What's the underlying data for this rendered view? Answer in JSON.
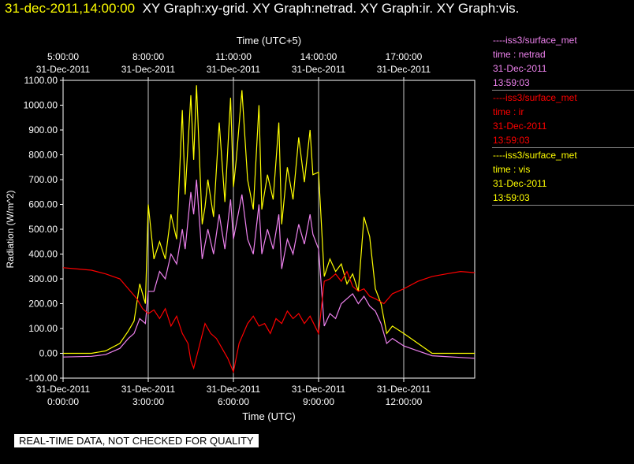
{
  "header": {
    "timestamp": "31-dec-2011,14:00:00",
    "graphs": "XY Graph:xy-grid.  XY Graph:netrad.  XY Graph:ir.  XY Graph:vis."
  },
  "legend": [
    {
      "title": "----iss3/surface_met",
      "var": "time : netrad",
      "date": "31-Dec-2011",
      "time": "13:59:03",
      "color": "#ee82ee"
    },
    {
      "title": "----iss3/surface_met",
      "var": "time : ir",
      "date": "31-Dec-2011",
      "time": "13:59:03",
      "color": "#ff0000"
    },
    {
      "title": "----iss3/surface_met",
      "var": "time : vis",
      "date": "31-Dec-2011",
      "time": "13:59:03",
      "color": "#ffff00"
    }
  ],
  "disclaimer": "REAL-TIME DATA, NOT CHECKED FOR QUALITY",
  "chart_data": {
    "type": "line",
    "xlabel": "Time (UTC)",
    "x2label": "Time (UTC+5)",
    "ylabel": "Radiation (W/m^2)",
    "xlim": [
      0,
      14.5
    ],
    "ylim": [
      -100,
      1100
    ],
    "grid": true,
    "x_ticks": [
      {
        "x": 0,
        "date": "31-Dec-2011",
        "time": "0:00:00"
      },
      {
        "x": 3,
        "date": "31-Dec-2011",
        "time": "3:00:00"
      },
      {
        "x": 6,
        "date": "31-Dec-2011",
        "time": "6:00:00"
      },
      {
        "x": 9,
        "date": "31-Dec-2011",
        "time": "9:00:00"
      },
      {
        "x": 12,
        "date": "31-Dec-2011",
        "time": "12:00:00"
      }
    ],
    "x2_ticks": [
      {
        "x": 0,
        "time": "5:00:00",
        "date": "31-Dec-2011"
      },
      {
        "x": 3,
        "time": "8:00:00",
        "date": "31-Dec-2011"
      },
      {
        "x": 6,
        "time": "11:00:00",
        "date": "31-Dec-2011"
      },
      {
        "x": 9,
        "time": "14:00:00",
        "date": "31-Dec-2011"
      },
      {
        "x": 12,
        "time": "17:00:00",
        "date": "31-Dec-2011"
      }
    ],
    "y_ticks": [
      "1100.00",
      "1000.00",
      "900.00",
      "800.00",
      "700.00",
      "600.00",
      "500.00",
      "400.00",
      "300.00",
      "200.00",
      "100.00",
      "0.00",
      "-100.00"
    ],
    "series": [
      {
        "name": "time : vis",
        "color": "#ffff00",
        "points": [
          [
            0,
            0
          ],
          [
            1,
            0
          ],
          [
            1.5,
            10
          ],
          [
            2,
            40
          ],
          [
            2.3,
            90
          ],
          [
            2.5,
            130
          ],
          [
            2.7,
            280
          ],
          [
            2.9,
            200
          ],
          [
            3,
            600
          ],
          [
            3.2,
            380
          ],
          [
            3.4,
            450
          ],
          [
            3.6,
            380
          ],
          [
            3.8,
            560
          ],
          [
            4,
            460
          ],
          [
            4.2,
            980
          ],
          [
            4.3,
            640
          ],
          [
            4.5,
            1040
          ],
          [
            4.6,
            780
          ],
          [
            4.7,
            1080
          ],
          [
            4.9,
            520
          ],
          [
            5,
            590
          ],
          [
            5.1,
            700
          ],
          [
            5.3,
            550
          ],
          [
            5.5,
            930
          ],
          [
            5.7,
            610
          ],
          [
            5.9,
            1030
          ],
          [
            6,
            670
          ],
          [
            6.1,
            780
          ],
          [
            6.3,
            1060
          ],
          [
            6.5,
            700
          ],
          [
            6.7,
            580
          ],
          [
            6.9,
            1000
          ],
          [
            7,
            580
          ],
          [
            7.2,
            720
          ],
          [
            7.4,
            620
          ],
          [
            7.6,
            930
          ],
          [
            7.7,
            520
          ],
          [
            7.9,
            750
          ],
          [
            8.1,
            620
          ],
          [
            8.3,
            870
          ],
          [
            8.5,
            690
          ],
          [
            8.7,
            900
          ],
          [
            8.8,
            720
          ],
          [
            9,
            730
          ],
          [
            9.2,
            310
          ],
          [
            9.4,
            380
          ],
          [
            9.6,
            330
          ],
          [
            9.8,
            360
          ],
          [
            10,
            280
          ],
          [
            10.2,
            320
          ],
          [
            10.4,
            250
          ],
          [
            10.6,
            550
          ],
          [
            10.8,
            470
          ],
          [
            11,
            260
          ],
          [
            11.2,
            200
          ],
          [
            11.4,
            80
          ],
          [
            11.6,
            110
          ],
          [
            12,
            80
          ],
          [
            12.5,
            40
          ],
          [
            13,
            0
          ],
          [
            14.5,
            0
          ]
        ]
      },
      {
        "name": "time : netrad",
        "color": "#ee82ee",
        "points": [
          [
            0,
            -15
          ],
          [
            1,
            -12
          ],
          [
            1.5,
            -5
          ],
          [
            2,
            20
          ],
          [
            2.3,
            60
          ],
          [
            2.5,
            80
          ],
          [
            2.7,
            140
          ],
          [
            2.9,
            120
          ],
          [
            3,
            250
          ],
          [
            3.2,
            250
          ],
          [
            3.4,
            330
          ],
          [
            3.6,
            300
          ],
          [
            3.8,
            400
          ],
          [
            4,
            360
          ],
          [
            4.2,
            500
          ],
          [
            4.3,
            420
          ],
          [
            4.5,
            650
          ],
          [
            4.6,
            560
          ],
          [
            4.7,
            700
          ],
          [
            4.9,
            380
          ],
          [
            5,
            440
          ],
          [
            5.1,
            500
          ],
          [
            5.3,
            400
          ],
          [
            5.5,
            560
          ],
          [
            5.7,
            420
          ],
          [
            5.9,
            620
          ],
          [
            6,
            460
          ],
          [
            6.1,
            520
          ],
          [
            6.3,
            640
          ],
          [
            6.5,
            460
          ],
          [
            6.7,
            400
          ],
          [
            6.9,
            600
          ],
          [
            7,
            400
          ],
          [
            7.2,
            500
          ],
          [
            7.4,
            420
          ],
          [
            7.6,
            560
          ],
          [
            7.7,
            340
          ],
          [
            7.9,
            460
          ],
          [
            8.1,
            400
          ],
          [
            8.3,
            520
          ],
          [
            8.5,
            440
          ],
          [
            8.7,
            560
          ],
          [
            8.8,
            480
          ],
          [
            9,
            420
          ],
          [
            9.2,
            110
          ],
          [
            9.4,
            160
          ],
          [
            9.6,
            140
          ],
          [
            9.8,
            200
          ],
          [
            10,
            220
          ],
          [
            10.2,
            240
          ],
          [
            10.4,
            200
          ],
          [
            10.6,
            230
          ],
          [
            10.8,
            190
          ],
          [
            11,
            170
          ],
          [
            11.2,
            120
          ],
          [
            11.4,
            40
          ],
          [
            11.6,
            60
          ],
          [
            12,
            30
          ],
          [
            12.5,
            10
          ],
          [
            13,
            -10
          ],
          [
            14.5,
            -20
          ]
        ]
      },
      {
        "name": "time : ir",
        "color": "#ff0000",
        "points": [
          [
            0,
            345
          ],
          [
            0.5,
            340
          ],
          [
            1,
            335
          ],
          [
            1.5,
            320
          ],
          [
            2,
            300
          ],
          [
            2.3,
            260
          ],
          [
            2.6,
            220
          ],
          [
            2.8,
            180
          ],
          [
            3,
            160
          ],
          [
            3.2,
            175
          ],
          [
            3.4,
            140
          ],
          [
            3.6,
            180
          ],
          [
            3.8,
            110
          ],
          [
            4,
            150
          ],
          [
            4.2,
            80
          ],
          [
            4.4,
            40
          ],
          [
            4.5,
            -30
          ],
          [
            4.6,
            -60
          ],
          [
            4.8,
            30
          ],
          [
            5,
            120
          ],
          [
            5.2,
            80
          ],
          [
            5.4,
            60
          ],
          [
            5.6,
            20
          ],
          [
            5.8,
            -20
          ],
          [
            6,
            -75
          ],
          [
            6.2,
            40
          ],
          [
            6.5,
            120
          ],
          [
            6.7,
            150
          ],
          [
            6.9,
            110
          ],
          [
            7.1,
            120
          ],
          [
            7.3,
            80
          ],
          [
            7.5,
            140
          ],
          [
            7.7,
            120
          ],
          [
            7.9,
            170
          ],
          [
            8.1,
            140
          ],
          [
            8.3,
            160
          ],
          [
            8.5,
            120
          ],
          [
            8.7,
            150
          ],
          [
            9,
            80
          ],
          [
            9.2,
            290
          ],
          [
            9.4,
            300
          ],
          [
            9.6,
            320
          ],
          [
            9.8,
            290
          ],
          [
            10,
            330
          ],
          [
            10.2,
            270
          ],
          [
            10.4,
            250
          ],
          [
            10.6,
            260
          ],
          [
            10.8,
            230
          ],
          [
            11,
            220
          ],
          [
            11.3,
            200
          ],
          [
            11.6,
            240
          ],
          [
            12,
            260
          ],
          [
            12.5,
            290
          ],
          [
            13,
            310
          ],
          [
            13.5,
            320
          ],
          [
            14,
            330
          ],
          [
            14.5,
            325
          ]
        ]
      }
    ]
  }
}
